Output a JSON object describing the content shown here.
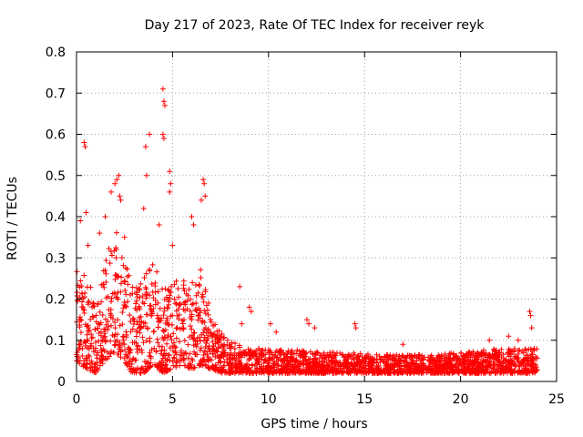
{
  "chart_data": {
    "type": "scatter",
    "title": "Day 217 of 2023, Rate Of TEC Index for receiver reyk",
    "xlabel": "GPS time / hours",
    "ylabel": "ROTI / TECUs",
    "xlim": [
      0,
      25
    ],
    "ylim": [
      0,
      0.8
    ],
    "x_ticks": [
      0,
      5,
      10,
      15,
      20,
      25
    ],
    "y_ticks": [
      0,
      0.1,
      0.2,
      0.3,
      0.4,
      0.5,
      0.6,
      0.7,
      0.8
    ],
    "x_tick_labels": [
      "0",
      "5",
      "10",
      "15",
      "20",
      "25"
    ],
    "y_tick_labels": [
      "0",
      "0.1",
      "0.2",
      "0.3",
      "0.4",
      "0.5",
      "0.6",
      "0.7",
      "0.8"
    ],
    "grid": true,
    "marker": "+",
    "color": "#ff0000",
    "series": [
      {
        "name": "ROTI",
        "envelope": [
          {
            "t": 0.0,
            "base": 0.08,
            "upper": 0.28
          },
          {
            "t": 0.5,
            "base": 0.06,
            "upper": 0.26
          },
          {
            "t": 1.0,
            "base": 0.05,
            "upper": 0.2
          },
          {
            "t": 1.5,
            "base": 0.08,
            "upper": 0.3
          },
          {
            "t": 2.0,
            "base": 0.1,
            "upper": 0.38
          },
          {
            "t": 2.5,
            "base": 0.08,
            "upper": 0.3
          },
          {
            "t": 3.0,
            "base": 0.04,
            "upper": 0.22
          },
          {
            "t": 3.5,
            "base": 0.05,
            "upper": 0.25
          },
          {
            "t": 4.0,
            "base": 0.07,
            "upper": 0.3
          },
          {
            "t": 4.5,
            "base": 0.05,
            "upper": 0.22
          },
          {
            "t": 5.0,
            "base": 0.06,
            "upper": 0.25
          },
          {
            "t": 5.5,
            "base": 0.07,
            "upper": 0.25
          },
          {
            "t": 6.0,
            "base": 0.06,
            "upper": 0.24
          },
          {
            "t": 6.5,
            "base": 0.07,
            "upper": 0.28
          },
          {
            "t": 7.0,
            "base": 0.06,
            "upper": 0.16
          },
          {
            "t": 7.5,
            "base": 0.05,
            "upper": 0.12
          },
          {
            "t": 8.0,
            "base": 0.04,
            "upper": 0.1
          },
          {
            "t": 9.0,
            "base": 0.035,
            "upper": 0.08
          },
          {
            "t": 10.0,
            "base": 0.035,
            "upper": 0.08
          },
          {
            "t": 12.0,
            "base": 0.035,
            "upper": 0.075
          },
          {
            "t": 14.0,
            "base": 0.03,
            "upper": 0.07
          },
          {
            "t": 16.0,
            "base": 0.03,
            "upper": 0.065
          },
          {
            "t": 18.0,
            "base": 0.03,
            "upper": 0.065
          },
          {
            "t": 20.0,
            "base": 0.03,
            "upper": 0.07
          },
          {
            "t": 22.0,
            "base": 0.035,
            "upper": 0.08
          },
          {
            "t": 24.0,
            "base": 0.035,
            "upper": 0.08
          }
        ],
        "peaks": [
          [
            0.2,
            0.39
          ],
          [
            0.4,
            0.58
          ],
          [
            0.45,
            0.57
          ],
          [
            0.5,
            0.41
          ],
          [
            0.6,
            0.33
          ],
          [
            1.2,
            0.36
          ],
          [
            1.5,
            0.4
          ],
          [
            1.8,
            0.46
          ],
          [
            2.0,
            0.48
          ],
          [
            2.1,
            0.49
          ],
          [
            2.2,
            0.5
          ],
          [
            2.25,
            0.45
          ],
          [
            2.3,
            0.44
          ],
          [
            2.5,
            0.35
          ],
          [
            3.5,
            0.42
          ],
          [
            3.6,
            0.57
          ],
          [
            3.65,
            0.5
          ],
          [
            3.8,
            0.6
          ],
          [
            4.3,
            0.38
          ],
          [
            4.5,
            0.71
          ],
          [
            4.55,
            0.68
          ],
          [
            4.6,
            0.67
          ],
          [
            4.5,
            0.6
          ],
          [
            4.55,
            0.59
          ],
          [
            4.85,
            0.51
          ],
          [
            4.9,
            0.48
          ],
          [
            4.85,
            0.46
          ],
          [
            5.0,
            0.33
          ],
          [
            6.0,
            0.4
          ],
          [
            6.1,
            0.38
          ],
          [
            6.5,
            0.44
          ],
          [
            6.6,
            0.49
          ],
          [
            6.65,
            0.48
          ],
          [
            6.7,
            0.45
          ],
          [
            8.5,
            0.23
          ],
          [
            8.6,
            0.14
          ],
          [
            9.0,
            0.18
          ],
          [
            9.1,
            0.17
          ],
          [
            10.1,
            0.14
          ],
          [
            10.4,
            0.12
          ],
          [
            12.0,
            0.15
          ],
          [
            12.1,
            0.14
          ],
          [
            12.4,
            0.13
          ],
          [
            14.5,
            0.14
          ],
          [
            14.55,
            0.13
          ],
          [
            17.0,
            0.09
          ],
          [
            21.5,
            0.1
          ],
          [
            22.5,
            0.11
          ],
          [
            23.0,
            0.1
          ],
          [
            23.6,
            0.17
          ],
          [
            23.65,
            0.16
          ],
          [
            23.7,
            0.13
          ]
        ],
        "point_count": 2600
      }
    ]
  }
}
